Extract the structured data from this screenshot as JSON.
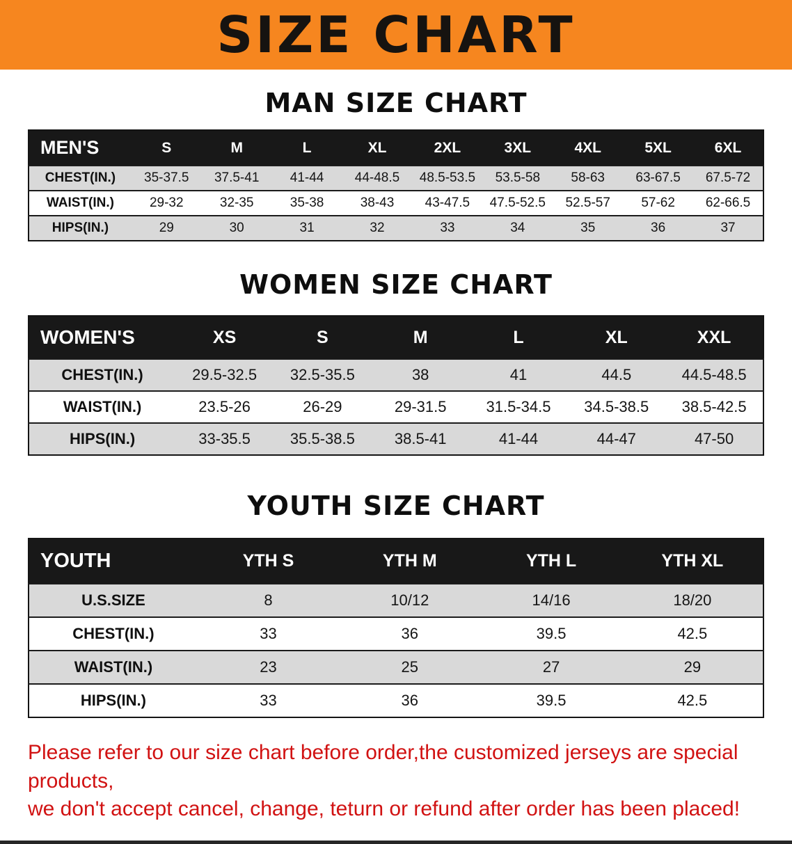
{
  "banner": {
    "title": "SIZE CHART"
  },
  "men": {
    "heading": "MAN SIZE CHART",
    "table": {
      "header": [
        "MEN'S",
        "S",
        "M",
        "L",
        "XL",
        "2XL",
        "3XL",
        "4XL",
        "5XL",
        "6XL"
      ],
      "rows": [
        [
          "CHEST(IN.)",
          "35-37.5",
          "37.5-41",
          "41-44",
          "44-48.5",
          "48.5-53.5",
          "53.5-58",
          "58-63",
          "63-67.5",
          "67.5-72"
        ],
        [
          "WAIST(IN.)",
          "29-32",
          "32-35",
          "35-38",
          "38-43",
          "43-47.5",
          "47.5-52.5",
          "52.5-57",
          "57-62",
          "62-66.5"
        ],
        [
          "HIPS(IN.)",
          "29",
          "30",
          "31",
          "32",
          "33",
          "34",
          "35",
          "36",
          "37"
        ]
      ]
    }
  },
  "women": {
    "heading": "WOMEN SIZE CHART",
    "table": {
      "header": [
        "WOMEN'S",
        "XS",
        "S",
        "M",
        "L",
        "XL",
        "XXL"
      ],
      "rows": [
        [
          "CHEST(IN.)",
          "29.5-32.5",
          "32.5-35.5",
          "38",
          "41",
          "44.5",
          "44.5-48.5"
        ],
        [
          "WAIST(IN.)",
          "23.5-26",
          "26-29",
          "29-31.5",
          "31.5-34.5",
          "34.5-38.5",
          "38.5-42.5"
        ],
        [
          "HIPS(IN.)",
          "33-35.5",
          "35.5-38.5",
          "38.5-41",
          "41-44",
          "44-47",
          "47-50"
        ]
      ]
    }
  },
  "youth": {
    "heading": "YOUTH SIZE CHART",
    "table": {
      "header": [
        "YOUTH",
        "YTH S",
        "YTH M",
        "YTH L",
        "YTH XL"
      ],
      "rows": [
        [
          "U.S.SIZE",
          "8",
          "10/12",
          "14/16",
          "18/20"
        ],
        [
          "CHEST(IN.)",
          "33",
          "36",
          "39.5",
          "42.5"
        ],
        [
          "WAIST(IN.)",
          "23",
          "25",
          "27",
          "29"
        ],
        [
          "HIPS(IN.)",
          "33",
          "36",
          "39.5",
          "42.5"
        ]
      ]
    }
  },
  "disclaimer": {
    "line1": "Please refer to our size chart before order,the customized jerseys are special products,",
    "line2": "we don't accept cancel, change, teturn or refund after order has been placed!"
  },
  "colors": {
    "banner_orange": "#f6861f",
    "table_header_black": "#181818",
    "row_gray": "#d9d9d9",
    "disclaimer_red": "#d11212"
  }
}
